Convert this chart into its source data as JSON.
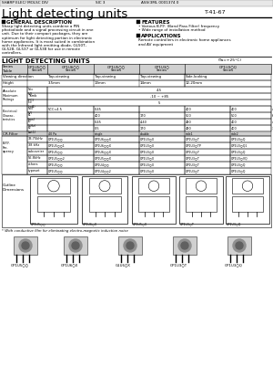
{
  "title_header": "SHARP ELEC/ MOLSC DIV",
  "title_ref": "ASS(3ML 0001374 0",
  "page_ref": "T-41-67",
  "main_title": "Light detecting units",
  "section_number": "SIC 3",
  "general_desc_title": "GENERAL DESCRIPTION",
  "general_desc_text": "Sharp light detecting units combine a PIN\nphotodiode and a signal processing circuit in one\nunit. Due to their compact packages, they are\noptimum for light detecting portion in electronic\nhome appliances. It is most suited in combination\nwith the Infrared light emitting diode, GL50T,\nGL528, GL537 or GL538 for use in remote\ncontrollers.",
  "features_title": "FEATURES",
  "features": [
    "Various B.P.F. (Band Pass Filter) frequency",
    "Wide range of installation method"
  ],
  "applications_title": "APPLICATIONS",
  "applications_text": "Remote controllers in electronic home appliances\nand AV equipment",
  "table_title": "LIGHT DETECTING UNITS",
  "table_note": "(Ta=+25°C)",
  "bg_color": "#ffffff",
  "note_text": "* With conductive film for eliminating electro-magnetic induction noise",
  "model_labels": [
    "GP1U5○○",
    "GP1U6○X",
    "G1U6○X",
    "GP1U3○T",
    "GP1U3○Q"
  ]
}
